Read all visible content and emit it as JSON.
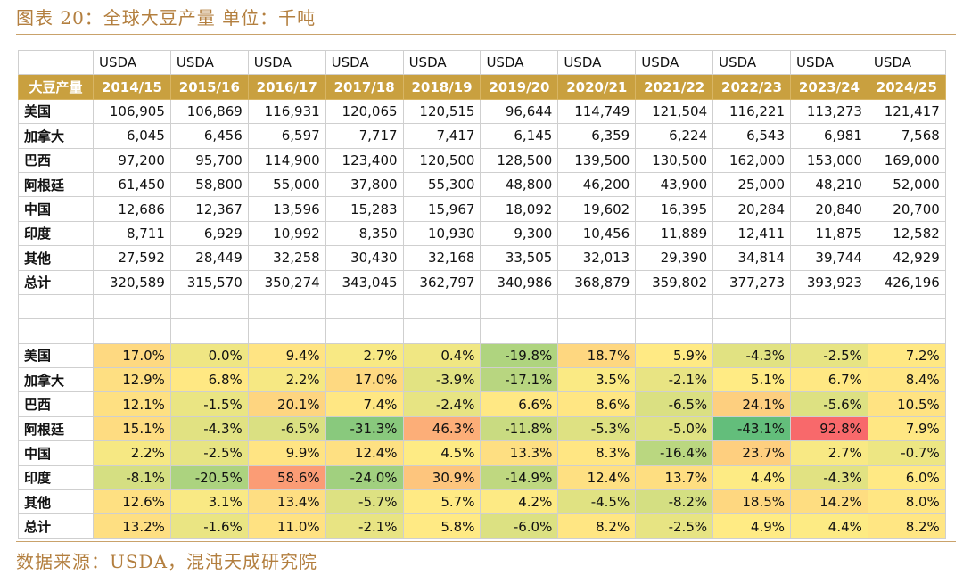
{
  "title": "图表 20：全球大豆产量 单位：千吨",
  "source": "数据来源：USDA，混沌天成研究院",
  "chart_data": {
    "type": "table",
    "header_label": "大豆产量",
    "source_labels": [
      "USDA",
      "USDA",
      "USDA",
      "USDA",
      "USDA",
      "USDA",
      "USDA",
      "USDA",
      "USDA",
      "USDA",
      "USDA"
    ],
    "columns": [
      "2014/15",
      "2015/16",
      "2016/17",
      "2017/18",
      "2018/19",
      "2019/20",
      "2020/21",
      "2021/22",
      "2022/23",
      "2023/24",
      "2024/25"
    ],
    "production_rows": [
      {
        "label": "美国",
        "values": [
          "106,905",
          "106,869",
          "116,931",
          "120,065",
          "120,515",
          "96,644",
          "114,749",
          "121,504",
          "116,221",
          "113,273",
          "121,417"
        ]
      },
      {
        "label": "加拿大",
        "values": [
          "6,045",
          "6,456",
          "6,597",
          "7,717",
          "7,417",
          "6,145",
          "6,359",
          "6,224",
          "6,543",
          "6,981",
          "7,568"
        ]
      },
      {
        "label": "巴西",
        "values": [
          "97,200",
          "95,700",
          "114,900",
          "123,400",
          "120,500",
          "128,500",
          "139,500",
          "130,500",
          "162,000",
          "153,000",
          "169,000"
        ]
      },
      {
        "label": "阿根廷",
        "values": [
          "61,450",
          "58,800",
          "55,000",
          "37,800",
          "55,300",
          "48,800",
          "46,200",
          "43,900",
          "25,000",
          "48,210",
          "52,000"
        ]
      },
      {
        "label": "中国",
        "values": [
          "12,686",
          "12,367",
          "13,596",
          "15,283",
          "15,967",
          "18,092",
          "19,602",
          "16,395",
          "20,284",
          "20,840",
          "20,700"
        ]
      },
      {
        "label": "印度",
        "values": [
          "8,711",
          "6,929",
          "10,992",
          "8,350",
          "10,930",
          "9,300",
          "10,456",
          "11,889",
          "12,411",
          "11,875",
          "12,582"
        ]
      },
      {
        "label": "其他",
        "values": [
          "27,592",
          "28,449",
          "32,258",
          "30,430",
          "32,168",
          "33,505",
          "32,013",
          "29,390",
          "34,814",
          "39,744",
          "42,929"
        ]
      },
      {
        "label": "总计",
        "values": [
          "320,589",
          "315,570",
          "350,274",
          "343,045",
          "362,797",
          "340,986",
          "368,879",
          "359,802",
          "377,273",
          "393,923",
          "426,196"
        ]
      }
    ],
    "change_rows": [
      {
        "label": "美国",
        "values": [
          17.0,
          0.0,
          9.4,
          2.7,
          0.4,
          -19.8,
          18.7,
          5.9,
          -4.3,
          -2.5,
          7.2
        ]
      },
      {
        "label": "加拿大",
        "values": [
          12.9,
          6.8,
          2.2,
          17.0,
          -3.9,
          -17.1,
          3.5,
          -2.1,
          5.1,
          6.7,
          8.4
        ]
      },
      {
        "label": "巴西",
        "values": [
          12.1,
          -1.5,
          20.1,
          7.4,
          -2.4,
          6.6,
          8.6,
          -6.5,
          24.1,
          -5.6,
          10.5
        ]
      },
      {
        "label": "阿根廷",
        "values": [
          15.1,
          -4.3,
          -6.5,
          -31.3,
          46.3,
          -11.8,
          -5.3,
          -5.0,
          -43.1,
          92.8,
          7.9
        ]
      },
      {
        "label": "中国",
        "values": [
          2.2,
          -2.5,
          9.9,
          12.4,
          4.5,
          13.3,
          8.3,
          -16.4,
          23.7,
          2.7,
          -0.7
        ]
      },
      {
        "label": "印度",
        "values": [
          -8.1,
          -20.5,
          58.6,
          -24.0,
          30.9,
          -14.9,
          12.4,
          13.7,
          4.4,
          -4.3,
          6.0
        ]
      },
      {
        "label": "其他",
        "values": [
          12.6,
          3.1,
          13.4,
          -5.7,
          5.7,
          4.2,
          -4.5,
          -8.2,
          18.5,
          14.2,
          8.0
        ]
      },
      {
        "label": "总计",
        "values": [
          13.2,
          -1.6,
          11.0,
          -2.1,
          5.8,
          -6.0,
          8.2,
          -2.5,
          4.9,
          4.4,
          8.2
        ]
      }
    ],
    "heatmap_colors": {
      "low": "#63be7b",
      "mid": "#ffeb84",
      "high": "#f8696b"
    }
  }
}
